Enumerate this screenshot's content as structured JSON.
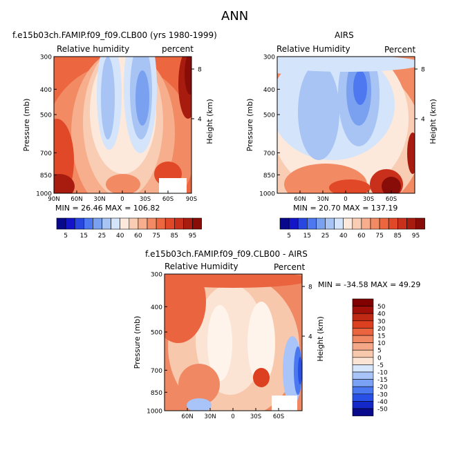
{
  "figure_title": "ANN",
  "colors": {
    "blue_scale": [
      "#08088c",
      "#1414c8",
      "#2846e0",
      "#4d78f0",
      "#7aa0f0",
      "#a8c4f4",
      "#d4e4fa"
    ],
    "warm_scale": [
      "#fde8dc",
      "#f9cdb4",
      "#f6ae8c",
      "#f28a64",
      "#ec6640",
      "#e04828",
      "#c8301c",
      "#a81c10",
      "#880c08"
    ],
    "diff_blue": [
      "#0a0a8c",
      "#1428c8",
      "#2850e6",
      "#4a78f0",
      "#7aa2f4",
      "#a8c4f8",
      "#d6e6fc"
    ],
    "diff_warm": [
      "#fce4d4",
      "#f8c8ac",
      "#f4a888",
      "#f08864",
      "#ea6440",
      "#dc4020",
      "#c02a14",
      "#a01008",
      "#800000"
    ]
  },
  "charts": {
    "model": {
      "title": "f.e15b03ch.FAMIP.f09_f09.CLB00 (yrs 1980-1999)",
      "left_label": "Relative humidity",
      "right_label": "percent",
      "ylabel": "Pressure (mb)",
      "ylabel_right": "Height (km)",
      "stats": "MIN =  26.46   MAX = 106.82"
    },
    "obs": {
      "title": "AIRS",
      "left_label": "Relative Humidity",
      "right_label": "Percent",
      "ylabel": "Pressure (mb)",
      "ylabel_right": "Height (km)",
      "stats": "MIN =  20.70   MAX = 137.19"
    },
    "diff": {
      "title": "f.e15b03ch.FAMIP.f09_f09.CLB00 - AIRS",
      "left_label": "Relative Humidity",
      "right_label": "Percent",
      "ylabel": "Pressure (mb)",
      "ylabel_right": "Height (km)",
      "stats": "MIN = -34.58   MAX =  49.29"
    }
  },
  "chart_data": [
    {
      "type": "heatmap",
      "title": "f.e15b03ch.FAMIP.f09_f09.CLB00 (yrs 1980-1999)",
      "ylabel": "Pressure (mb)",
      "ylabel_right": "Height (km)",
      "x_ticks": [
        "90N",
        "60N",
        "30N",
        "0",
        "30S",
        "60S",
        "90S"
      ],
      "y_ticks": [
        "300",
        "400",
        "500",
        "700",
        "850",
        "1000"
      ],
      "y_right_ticks": [
        "8",
        "4"
      ],
      "ylim": [
        1000,
        300
      ],
      "colorbar_labels": [
        "5",
        "15",
        "25",
        "40",
        "60",
        "75",
        "85",
        "95"
      ],
      "min": 26.46,
      "max": 106.82
    },
    {
      "type": "heatmap",
      "title": "AIRS",
      "ylabel": "Pressure (mb)",
      "ylabel_right": "Height (km)",
      "x_ticks": [
        "60N",
        "30N",
        "0",
        "30S",
        "60S"
      ],
      "y_ticks": [
        "300",
        "400",
        "500",
        "700",
        "850",
        "1000"
      ],
      "y_right_ticks": [
        "8",
        "4"
      ],
      "ylim": [
        1000,
        300
      ],
      "colorbar_labels": [
        "5",
        "15",
        "25",
        "40",
        "60",
        "75",
        "85",
        "95"
      ],
      "min": 20.7,
      "max": 137.19
    },
    {
      "type": "heatmap",
      "title": "f.e15b03ch.FAMIP.f09_f09.CLB00 - AIRS",
      "ylabel": "Pressure (mb)",
      "ylabel_right": "Height (km)",
      "x_ticks": [
        "60N",
        "30N",
        "0",
        "30S",
        "60S"
      ],
      "y_ticks": [
        "300",
        "400",
        "500",
        "700",
        "850",
        "1000"
      ],
      "y_right_ticks": [
        "8",
        "4"
      ],
      "ylim": [
        1000,
        300
      ],
      "colorbar_labels": [
        "50",
        "40",
        "30",
        "20",
        "15",
        "10",
        "5",
        "0",
        "-5",
        "-10",
        "-15",
        "-20",
        "-30",
        "-40",
        "-50"
      ],
      "min": -34.58,
      "max": 49.29
    }
  ]
}
